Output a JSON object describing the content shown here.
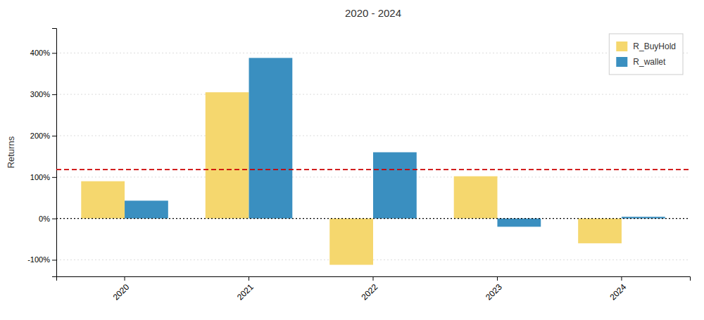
{
  "chart_data": {
    "type": "bar",
    "title": "2020 - 2024",
    "y_label": "Returns",
    "categories": [
      "2020",
      "2021",
      "2022",
      "2023",
      "2024"
    ],
    "series": [
      {
        "name": "R_BuyHold",
        "color": "#F5D76E",
        "values": [
          0.9,
          3.05,
          -1.12,
          1.02,
          -0.6
        ]
      },
      {
        "name": "R_wallet",
        "color": "#3A8FC0",
        "values": [
          0.43,
          3.88,
          1.6,
          -0.2,
          0.04
        ]
      }
    ],
    "ylim": [
      -1.4,
      4.6
    ],
    "yticks": [
      {
        "value": -1.0,
        "label": "-100%"
      },
      {
        "value": 0.0,
        "label": "0%"
      },
      {
        "value": 1.0,
        "label": "100%"
      },
      {
        "value": 2.0,
        "label": "200%"
      },
      {
        "value": 3.0,
        "label": "300%"
      },
      {
        "value": 4.0,
        "label": "400%"
      }
    ],
    "reference_lines": [
      {
        "value": 1.18,
        "color": "#cc0000",
        "line_style": "dashed"
      },
      {
        "value": 0,
        "color": "#000000",
        "line_style": "dotted"
      }
    ],
    "grid": true,
    "legend": "upper right"
  }
}
